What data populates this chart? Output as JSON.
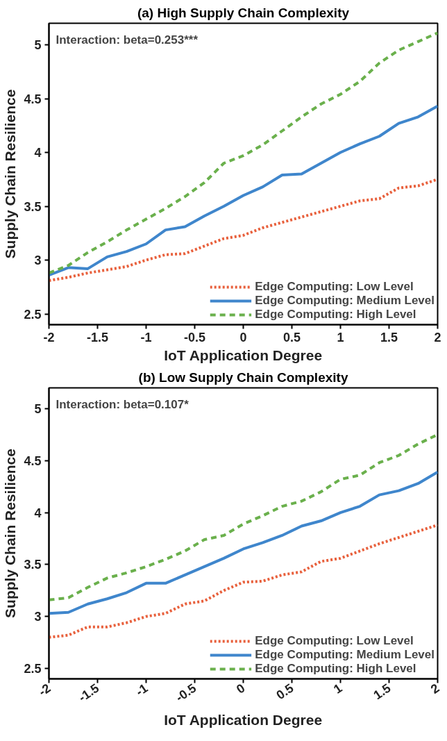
{
  "chart_data": [
    {
      "type": "line",
      "title": "(a) High Supply Chain Complexity",
      "xlabel": "IoT Application Degree",
      "ylabel": "Supply Chain Resilience",
      "annotations": [
        "Interaction: beta=0.253***"
      ],
      "x": [
        -2,
        -1.8,
        -1.6,
        -1.4,
        -1.2,
        -1.0,
        -0.8,
        -0.6,
        -0.4,
        -0.2,
        0,
        0.2,
        0.4,
        0.6,
        0.8,
        1.0,
        1.2,
        1.4,
        1.6,
        1.8,
        2.0
      ],
      "xlim": [
        -2,
        2
      ],
      "xticks": [
        -2,
        -1.5,
        -1,
        -0.5,
        0,
        0.5,
        1,
        1.5,
        2
      ],
      "ylim": [
        2.4,
        5.2
      ],
      "yticks": [
        2.5,
        3,
        3.5,
        4,
        4.5,
        5
      ],
      "grid": false,
      "legend": "bottom right",
      "series": [
        {
          "name": "Edge Computing: Low Level",
          "color": "#e8603c",
          "line_style": "dotted",
          "values": [
            2.81,
            2.84,
            2.88,
            2.91,
            2.94,
            3.0,
            3.05,
            3.06,
            3.13,
            3.2,
            3.23,
            3.3,
            3.35,
            3.4,
            3.45,
            3.5,
            3.55,
            3.57,
            3.67,
            3.69,
            3.75
          ]
        },
        {
          "name": "Edge Computing: Medium Level",
          "color": "#3f86cc",
          "line_style": "solid",
          "values": [
            2.86,
            2.93,
            2.92,
            3.03,
            3.08,
            3.15,
            3.28,
            3.31,
            3.41,
            3.5,
            3.6,
            3.68,
            3.79,
            3.8,
            3.9,
            4.0,
            4.08,
            4.15,
            4.27,
            4.33,
            4.43
          ]
        },
        {
          "name": "Edge Computing: High Level",
          "color": "#6ab04c",
          "line_style": "dashed",
          "values": [
            2.88,
            2.95,
            3.07,
            3.17,
            3.28,
            3.38,
            3.48,
            3.59,
            3.72,
            3.9,
            3.97,
            4.07,
            4.2,
            4.33,
            4.45,
            4.54,
            4.66,
            4.83,
            4.95,
            5.03,
            5.11
          ]
        }
      ]
    },
    {
      "type": "line",
      "title": "(b) Low Supply Chain Complexity",
      "xlabel": "IoT Application Degree",
      "ylabel": "Supply Chain Resilience",
      "annotations": [
        "Interaction: beta=0.107*"
      ],
      "x": [
        -2,
        -1.8,
        -1.6,
        -1.4,
        -1.2,
        -1.0,
        -0.8,
        -0.6,
        -0.4,
        -0.2,
        0,
        0.2,
        0.4,
        0.6,
        0.8,
        1.0,
        1.2,
        1.4,
        1.6,
        1.8,
        2.0
      ],
      "xlim": [
        -2,
        2
      ],
      "xticks": [
        -2,
        -1.5,
        -1,
        -0.5,
        0,
        0.5,
        1,
        1.5,
        2
      ],
      "ylim": [
        2.4,
        5.2
      ],
      "yticks": [
        2.5,
        3,
        3.5,
        4,
        4.5,
        5
      ],
      "grid": false,
      "legend": "bottom right",
      "series": [
        {
          "name": "Edge Computing: Low Level",
          "color": "#e8603c",
          "line_style": "dotted",
          "values": [
            2.8,
            2.82,
            2.9,
            2.9,
            2.94,
            3.0,
            3.03,
            3.12,
            3.15,
            3.25,
            3.33,
            3.34,
            3.4,
            3.43,
            3.53,
            3.56,
            3.63,
            3.7,
            3.76,
            3.82,
            3.88
          ]
        },
        {
          "name": "Edge Computing: Medium Level",
          "color": "#3f86cc",
          "line_style": "solid",
          "values": [
            3.03,
            3.04,
            3.12,
            3.17,
            3.23,
            3.32,
            3.32,
            3.4,
            3.48,
            3.56,
            3.65,
            3.71,
            3.78,
            3.87,
            3.92,
            4.0,
            4.06,
            4.17,
            4.21,
            4.28,
            4.39
          ]
        },
        {
          "name": "Edge Computing: High Level",
          "color": "#6ab04c",
          "line_style": "dashed",
          "values": [
            3.16,
            3.18,
            3.28,
            3.37,
            3.42,
            3.48,
            3.55,
            3.63,
            3.74,
            3.78,
            3.89,
            3.97,
            4.06,
            4.11,
            4.2,
            4.32,
            4.36,
            4.48,
            4.55,
            4.66,
            4.75
          ]
        }
      ]
    }
  ]
}
